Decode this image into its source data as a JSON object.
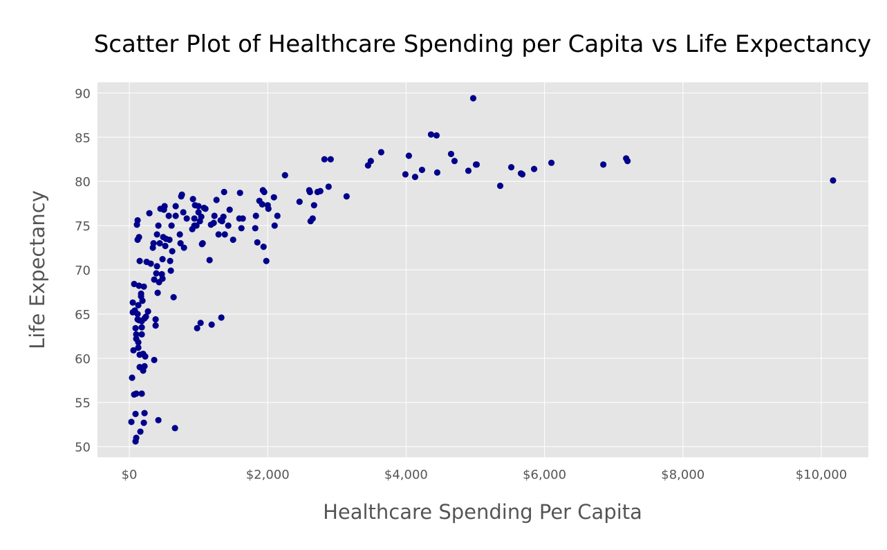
{
  "chart_data": {
    "type": "scatter",
    "title": "Scatter Plot of Healthcare Spending per Capita vs Life Expectancy",
    "xlabel": "Healthcare Spending Per Capita",
    "ylabel": "Life Expectancy",
    "xlim": [
      -460,
      10680
    ],
    "ylim": [
      48.8,
      91.2
    ],
    "x_ticks": [
      0,
      2000,
      4000,
      6000,
      8000,
      10000
    ],
    "x_tick_labels": [
      "$0",
      "$2,000",
      "$4,000",
      "$6,000",
      "$8,000",
      "$10,000"
    ],
    "y_ticks": [
      50,
      55,
      60,
      65,
      70,
      75,
      80,
      85,
      90
    ],
    "y_tick_labels": [
      "50",
      "55",
      "60",
      "65",
      "70",
      "75",
      "80",
      "85",
      "90"
    ],
    "grid": true,
    "background_color": "#e5e5e5",
    "grid_color": "#ffffff",
    "point_color": "#00008b",
    "points": [
      [
        30,
        52.8
      ],
      [
        40,
        57.8
      ],
      [
        50,
        66.3
      ],
      [
        50,
        65.2
      ],
      [
        70,
        55.9
      ],
      [
        70,
        68.4
      ],
      [
        60,
        60.9
      ],
      [
        80,
        65.4
      ],
      [
        90,
        63.4
      ],
      [
        90,
        53.7
      ],
      [
        90,
        50.6
      ],
      [
        100,
        51.0
      ],
      [
        100,
        62.7
      ],
      [
        100,
        62.2
      ],
      [
        100,
        56.0
      ],
      [
        110,
        75.1
      ],
      [
        120,
        75.6
      ],
      [
        120,
        73.4
      ],
      [
        120,
        65.0
      ],
      [
        120,
        64.4
      ],
      [
        130,
        61.2
      ],
      [
        130,
        61.8
      ],
      [
        130,
        66.0
      ],
      [
        140,
        73.7
      ],
      [
        140,
        68.2
      ],
      [
        140,
        64.3
      ],
      [
        150,
        59.0
      ],
      [
        150,
        60.4
      ],
      [
        150,
        71.0
      ],
      [
        160,
        51.7
      ],
      [
        170,
        67.3
      ],
      [
        170,
        67.0
      ],
      [
        180,
        64.2
      ],
      [
        180,
        63.5
      ],
      [
        180,
        62.7
      ],
      [
        180,
        56.0
      ],
      [
        190,
        66.5
      ],
      [
        200,
        60.5
      ],
      [
        200,
        58.6
      ],
      [
        210,
        52.7
      ],
      [
        210,
        68.1
      ],
      [
        220,
        64.5
      ],
      [
        220,
        59.1
      ],
      [
        220,
        53.8
      ],
      [
        230,
        60.2
      ],
      [
        240,
        64.7
      ],
      [
        250,
        70.9
      ],
      [
        270,
        65.3
      ],
      [
        290,
        76.4
      ],
      [
        310,
        70.7
      ],
      [
        340,
        72.5
      ],
      [
        350,
        73.0
      ],
      [
        360,
        68.9
      ],
      [
        360,
        59.8
      ],
      [
        380,
        64.4
      ],
      [
        380,
        63.7
      ],
      [
        390,
        69.6
      ],
      [
        400,
        74.0
      ],
      [
        400,
        70.4
      ],
      [
        410,
        67.4
      ],
      [
        420,
        75.0
      ],
      [
        420,
        53.0
      ],
      [
        430,
        68.6
      ],
      [
        440,
        73.0
      ],
      [
        450,
        76.9
      ],
      [
        470,
        69.5
      ],
      [
        480,
        69.0
      ],
      [
        480,
        71.2
      ],
      [
        490,
        73.7
      ],
      [
        500,
        76.8
      ],
      [
        510,
        77.2
      ],
      [
        520,
        72.7
      ],
      [
        530,
        73.5
      ],
      [
        570,
        76.1
      ],
      [
        580,
        73.4
      ],
      [
        590,
        71.0
      ],
      [
        600,
        69.9
      ],
      [
        610,
        75.0
      ],
      [
        620,
        72.1
      ],
      [
        640,
        66.9
      ],
      [
        660,
        52.1
      ],
      [
        670,
        77.2
      ],
      [
        670,
        76.1
      ],
      [
        730,
        74.0
      ],
      [
        740,
        73.0
      ],
      [
        750,
        78.3
      ],
      [
        760,
        78.5
      ],
      [
        780,
        76.5
      ],
      [
        790,
        72.5
      ],
      [
        830,
        75.8
      ],
      [
        910,
        74.6
      ],
      [
        920,
        78.0
      ],
      [
        940,
        75.0
      ],
      [
        940,
        75.8
      ],
      [
        950,
        77.3
      ],
      [
        970,
        75.0
      ],
      [
        980,
        63.4
      ],
      [
        1000,
        77.2
      ],
      [
        1000,
        76.5
      ],
      [
        1020,
        75.5
      ],
      [
        1030,
        64.0
      ],
      [
        1040,
        76.0
      ],
      [
        1050,
        72.9
      ],
      [
        1060,
        73.0
      ],
      [
        1080,
        77.0
      ],
      [
        1100,
        76.9
      ],
      [
        1160,
        71.1
      ],
      [
        1180,
        75.1
      ],
      [
        1190,
        63.8
      ],
      [
        1220,
        75.3
      ],
      [
        1230,
        76.1
      ],
      [
        1260,
        77.9
      ],
      [
        1290,
        74.0
      ],
      [
        1320,
        75.6
      ],
      [
        1330,
        64.6
      ],
      [
        1340,
        75.5
      ],
      [
        1360,
        76.0
      ],
      [
        1370,
        78.8
      ],
      [
        1380,
        74.0
      ],
      [
        1430,
        75.0
      ],
      [
        1450,
        76.8
      ],
      [
        1500,
        73.4
      ],
      [
        1590,
        75.8
      ],
      [
        1600,
        78.7
      ],
      [
        1620,
        74.7
      ],
      [
        1640,
        75.8
      ],
      [
        1820,
        74.7
      ],
      [
        1830,
        76.1
      ],
      [
        1850,
        73.1
      ],
      [
        1880,
        77.8
      ],
      [
        1920,
        77.4
      ],
      [
        1930,
        79.0
      ],
      [
        1940,
        72.6
      ],
      [
        1950,
        78.8
      ],
      [
        1980,
        71.0
      ],
      [
        2000,
        77.3
      ],
      [
        2010,
        76.9
      ],
      [
        2090,
        78.2
      ],
      [
        2100,
        75.0
      ],
      [
        2140,
        76.1
      ],
      [
        2250,
        80.7
      ],
      [
        2460,
        77.7
      ],
      [
        2600,
        79.0
      ],
      [
        2610,
        78.8
      ],
      [
        2620,
        75.5
      ],
      [
        2650,
        75.8
      ],
      [
        2670,
        77.3
      ],
      [
        2720,
        78.8
      ],
      [
        2760,
        78.9
      ],
      [
        2820,
        82.5
      ],
      [
        2880,
        79.4
      ],
      [
        2910,
        82.5
      ],
      [
        3140,
        78.3
      ],
      [
        3450,
        81.8
      ],
      [
        3490,
        82.3
      ],
      [
        3640,
        83.3
      ],
      [
        3990,
        80.8
      ],
      [
        4040,
        82.9
      ],
      [
        4130,
        80.5
      ],
      [
        4230,
        81.3
      ],
      [
        4360,
        85.3
      ],
      [
        4440,
        85.2
      ],
      [
        4450,
        81.0
      ],
      [
        4650,
        83.1
      ],
      [
        4700,
        82.3
      ],
      [
        4900,
        81.2
      ],
      [
        4970,
        89.4
      ],
      [
        5010,
        81.9
      ],
      [
        5020,
        81.9
      ],
      [
        5360,
        79.5
      ],
      [
        5520,
        81.6
      ],
      [
        5660,
        80.9
      ],
      [
        5680,
        80.8
      ],
      [
        5850,
        81.4
      ],
      [
        6100,
        82.1
      ],
      [
        6850,
        81.9
      ],
      [
        7180,
        82.6
      ],
      [
        7200,
        82.3
      ],
      [
        10170,
        80.1
      ]
    ]
  }
}
